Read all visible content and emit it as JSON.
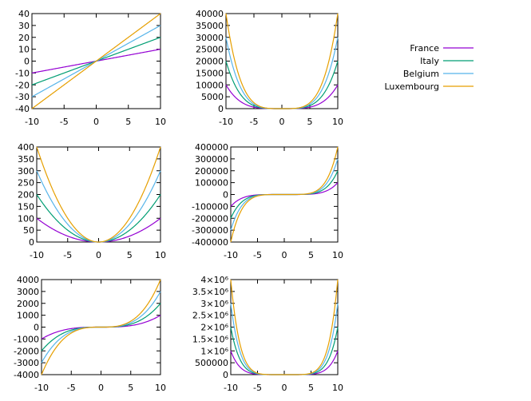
{
  "chart_data": [
    {
      "type": "line",
      "title": "",
      "xlabel": "",
      "ylabel": "",
      "xlim": [
        -10,
        10
      ],
      "ylim": [
        -40,
        40
      ],
      "x_ticks": [
        "-10",
        "-5",
        "0",
        "5",
        "10"
      ],
      "y_ticks": [
        "-40",
        "-30",
        "-20",
        "-10",
        "0",
        "10",
        "20",
        "30",
        "40"
      ],
      "grid": false,
      "series": [
        {
          "name": "France",
          "values": [
            -10,
            0,
            10
          ]
        },
        {
          "name": "Italy",
          "values": [
            -20,
            0,
            20
          ]
        },
        {
          "name": "Belgium",
          "values": [
            -30,
            0,
            30
          ]
        },
        {
          "name": "Luxembourg",
          "values": [
            -40,
            0,
            40
          ]
        }
      ],
      "x": [
        -10,
        0,
        10
      ]
    },
    {
      "type": "line",
      "title": "",
      "xlabel": "",
      "ylabel": "",
      "xlim": [
        -10,
        10
      ],
      "ylim": [
        0,
        40000
      ],
      "x_ticks": [
        "-10",
        "-5",
        "0",
        "5",
        "10"
      ],
      "y_ticks": [
        "0",
        "5000",
        "10000",
        "15000",
        "20000",
        "25000",
        "30000",
        "35000",
        "40000"
      ],
      "grid": false,
      "x": [
        -10,
        -8,
        -6,
        -4,
        -2,
        0,
        2,
        4,
        6,
        8,
        10
      ],
      "series": [
        {
          "name": "France",
          "values": [
            10000,
            4096,
            1296,
            256,
            16,
            0,
            16,
            256,
            1296,
            4096,
            10000
          ]
        },
        {
          "name": "Italy",
          "values": [
            20000,
            8192,
            2592,
            512,
            32,
            0,
            32,
            512,
            2592,
            8192,
            20000
          ]
        },
        {
          "name": "Belgium",
          "values": [
            30000,
            12288,
            3888,
            768,
            48,
            0,
            48,
            768,
            3888,
            12288,
            30000
          ]
        },
        {
          "name": "Luxembourg",
          "values": [
            40000,
            16384,
            5184,
            1024,
            64,
            0,
            64,
            1024,
            5184,
            16384,
            40000
          ]
        }
      ]
    },
    {
      "type": "line",
      "title": "",
      "xlabel": "",
      "ylabel": "",
      "xlim": [
        -10,
        10
      ],
      "ylim": [
        0,
        400
      ],
      "x_ticks": [
        "-10",
        "-5",
        "0",
        "5",
        "10"
      ],
      "y_ticks": [
        "0",
        "50",
        "100",
        "150",
        "200",
        "250",
        "300",
        "350",
        "400"
      ],
      "grid": false,
      "x": [
        -10,
        -8,
        -6,
        -4,
        -2,
        0,
        2,
        4,
        6,
        8,
        10
      ],
      "series": [
        {
          "name": "France",
          "values": [
            100,
            64,
            36,
            16,
            4,
            0,
            4,
            16,
            36,
            64,
            100
          ]
        },
        {
          "name": "Italy",
          "values": [
            200,
            128,
            72,
            32,
            8,
            0,
            8,
            32,
            72,
            128,
            200
          ]
        },
        {
          "name": "Belgium",
          "values": [
            300,
            192,
            108,
            48,
            12,
            0,
            12,
            48,
            108,
            192,
            300
          ]
        },
        {
          "name": "Luxembourg",
          "values": [
            400,
            256,
            144,
            64,
            16,
            0,
            16,
            64,
            144,
            256,
            400
          ]
        }
      ]
    },
    {
      "type": "line",
      "title": "",
      "xlabel": "",
      "ylabel": "",
      "xlim": [
        -10,
        10
      ],
      "ylim": [
        -400000,
        400000
      ],
      "x_ticks": [
        "-10",
        "-5",
        "0",
        "5",
        "10"
      ],
      "y_ticks": [
        "-400000",
        "-300000",
        "-200000",
        "-100000",
        "0",
        "100000",
        "200000",
        "300000",
        "400000"
      ],
      "grid": false,
      "x": [
        -10,
        -8,
        -6,
        -4,
        -2,
        0,
        2,
        4,
        6,
        8,
        10
      ],
      "series": [
        {
          "name": "France",
          "values": [
            -100000,
            -32768,
            -7776,
            -1024,
            -32,
            0,
            32,
            1024,
            7776,
            32768,
            100000
          ]
        },
        {
          "name": "Italy",
          "values": [
            -200000,
            -65536,
            -15552,
            -2048,
            -64,
            0,
            64,
            2048,
            15552,
            65536,
            200000
          ]
        },
        {
          "name": "Belgium",
          "values": [
            -300000,
            -98304,
            -23328,
            -3072,
            -96,
            0,
            96,
            3072,
            23328,
            98304,
            300000
          ]
        },
        {
          "name": "Luxembourg",
          "values": [
            -400000,
            -131072,
            -31104,
            -4096,
            -128,
            0,
            128,
            4096,
            31104,
            131072,
            400000
          ]
        }
      ]
    },
    {
      "type": "line",
      "title": "",
      "xlabel": "",
      "ylabel": "",
      "xlim": [
        -10,
        10
      ],
      "ylim": [
        -4000,
        4000
      ],
      "x_ticks": [
        "-10",
        "-5",
        "0",
        "5",
        "10"
      ],
      "y_ticks": [
        "-4000",
        "-3000",
        "-2000",
        "-1000",
        "0",
        "1000",
        "2000",
        "3000",
        "4000"
      ],
      "grid": false,
      "x": [
        -10,
        -8,
        -6,
        -4,
        -2,
        0,
        2,
        4,
        6,
        8,
        10
      ],
      "series": [
        {
          "name": "France",
          "values": [
            -1000,
            -512,
            -216,
            -64,
            -8,
            0,
            8,
            64,
            216,
            512,
            1000
          ]
        },
        {
          "name": "Italy",
          "values": [
            -2000,
            -1024,
            -432,
            -128,
            -16,
            0,
            16,
            128,
            432,
            1024,
            2000
          ]
        },
        {
          "name": "Belgium",
          "values": [
            -3000,
            -1536,
            -648,
            -192,
            -24,
            0,
            24,
            192,
            648,
            1536,
            3000
          ]
        },
        {
          "name": "Luxembourg",
          "values": [
            -4000,
            -2048,
            -864,
            -256,
            -32,
            0,
            32,
            256,
            864,
            2048,
            4000
          ]
        }
      ]
    },
    {
      "type": "line",
      "title": "",
      "xlabel": "",
      "ylabel": "",
      "xlim": [
        -10,
        10
      ],
      "ylim": [
        0,
        4000000
      ],
      "x_ticks": [
        "-10",
        "-5",
        "0",
        "5",
        "10"
      ],
      "y_ticks": [
        "0",
        "500000",
        "1×10⁶",
        "1.5×10⁶",
        "2×10⁶",
        "2.5×10⁶",
        "3×10⁶",
        "3.5×10⁶",
        "4×10⁶"
      ],
      "grid": false,
      "x": [
        -10,
        -8,
        -6,
        -4,
        -2,
        0,
        2,
        4,
        6,
        8,
        10
      ],
      "series": [
        {
          "name": "France",
          "values": [
            1000000,
            262144,
            46656,
            4096,
            64,
            0,
            64,
            4096,
            46656,
            262144,
            1000000
          ]
        },
        {
          "name": "Italy",
          "values": [
            2000000,
            524288,
            93312,
            8192,
            128,
            0,
            128,
            8192,
            93312,
            524288,
            2000000
          ]
        },
        {
          "name": "Belgium",
          "values": [
            3000000,
            786432,
            139968,
            12288,
            192,
            0,
            192,
            12288,
            139968,
            786432,
            3000000
          ]
        },
        {
          "name": "Luxembourg",
          "values": [
            4000000,
            1048576,
            186624,
            16384,
            256,
            0,
            256,
            16384,
            186624,
            1048576,
            4000000
          ]
        }
      ]
    }
  ],
  "legend": {
    "placement": "right",
    "entries": [
      "France",
      "Italy",
      "Belgium",
      "Luxembourg"
    ]
  },
  "colors": {
    "France": "#9400d3",
    "Italy": "#009e73",
    "Belgium": "#56b4e9",
    "Luxembourg": "#e69f00"
  }
}
